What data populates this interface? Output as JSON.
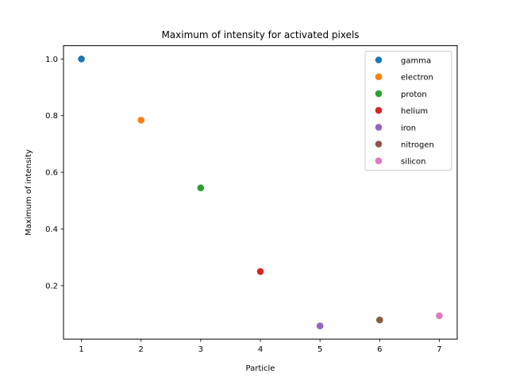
{
  "chart_data": {
    "type": "scatter",
    "title": "Maximum of intensity for activated pixels",
    "xlabel": "Particle",
    "ylabel": "Maximum of intensity",
    "xlim": [
      0.7,
      7.3
    ],
    "ylim": [
      0.0115,
      1.0467
    ],
    "xticks": [
      1,
      2,
      3,
      4,
      5,
      6,
      7
    ],
    "xtick_labels": [
      "1",
      "2",
      "3",
      "4",
      "5",
      "6",
      "7"
    ],
    "yticks": [
      0.2,
      0.4,
      0.6,
      0.8,
      1.0
    ],
    "ytick_labels": [
      "0.2",
      "0.4",
      "0.6",
      "0.8",
      "1.0"
    ],
    "grid": false,
    "legend_position": "top-right",
    "series": [
      {
        "name": "gamma",
        "color": "#1f77b4",
        "x": [
          1
        ],
        "y": [
          1.0
        ]
      },
      {
        "name": "electron",
        "color": "#ff7f0e",
        "x": [
          2
        ],
        "y": [
          0.784
        ]
      },
      {
        "name": "proton",
        "color": "#2ca02c",
        "x": [
          3
        ],
        "y": [
          0.545
        ]
      },
      {
        "name": "helium",
        "color": "#d62728",
        "x": [
          4
        ],
        "y": [
          0.25
        ]
      },
      {
        "name": "iron",
        "color": "#9467bd",
        "x": [
          5
        ],
        "y": [
          0.058
        ]
      },
      {
        "name": "nitrogen",
        "color": "#8c564b",
        "x": [
          6
        ],
        "y": [
          0.079
        ]
      },
      {
        "name": "silicon",
        "color": "#e377c2",
        "x": [
          7
        ],
        "y": [
          0.094
        ]
      }
    ]
  }
}
